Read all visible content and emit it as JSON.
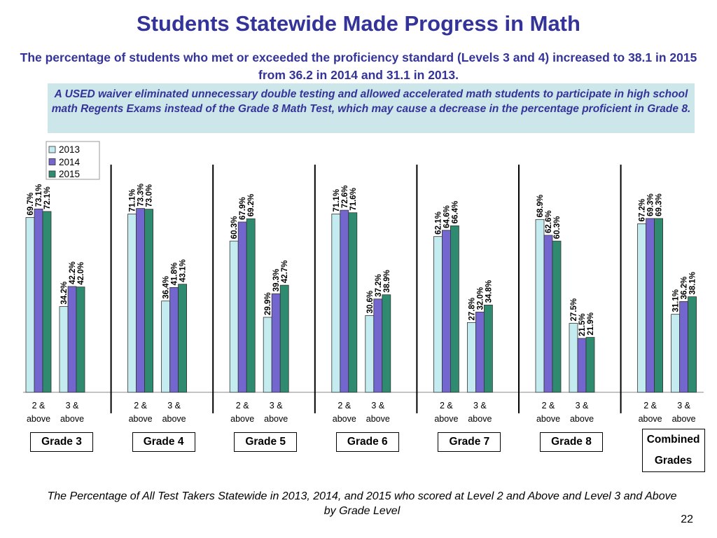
{
  "title": "Students Statewide Made Progress in Math",
  "subtitle": "The percentage of students who met or exceeded the proficiency standard (Levels 3 and 4) increased to 38.1 in 2015 from 36.2 in 2014 and 31.1 in 2013.",
  "note": "A USED waiver eliminated unnecessary double testing and allowed accelerated math students to participate in high school math Regents Exams instead of the Grade 8 Math Test, which may cause a decrease in the percentage proficient in Grade 8.",
  "caption": "The Percentage of All Test Takers Statewide in 2013, 2014, and 2015 who scored at Level 2 and Above and Level 3 and Above by Grade Level",
  "page_number": "22",
  "chart_data": {
    "type": "bar",
    "categories": [
      "2 & above",
      "3 & above",
      "2 & above",
      "3 & above",
      "2 & above",
      "3 & above",
      "2 & above",
      "3 & above",
      "2 & above",
      "3 & above",
      "2 & above",
      "3 & above",
      "2 & above",
      "3 & above"
    ],
    "groups": [
      "Grade 3",
      "Grade 4",
      "Grade 5",
      "Grade 6",
      "Grade 7",
      "Grade 8",
      "Combined Grades"
    ],
    "ylim": [
      0,
      100
    ],
    "legend": "top-left",
    "series": [
      {
        "name": "2013",
        "color": "#c4ecf0",
        "values": [
          69.7,
          34.2,
          71.1,
          36.4,
          60.3,
          29.9,
          71.1,
          30.6,
          62.1,
          27.8,
          68.9,
          27.5,
          67.2,
          31.1
        ],
        "value_labels": [
          "69.7%",
          "34.2%",
          "71.1%",
          "36.4%",
          "60.3%",
          "29.9%",
          "71.1%",
          "30.6%",
          "62.1%",
          "27.8%",
          "68.9%",
          "27.5%",
          "67.2%",
          "31.1%"
        ]
      },
      {
        "name": "2014",
        "color": "#7466cf",
        "values": [
          73.1,
          42.2,
          73.3,
          41.8,
          67.9,
          39.3,
          72.6,
          37.2,
          64.6,
          32.0,
          62.6,
          21.5,
          69.3,
          36.2
        ],
        "value_labels": [
          "73.1%",
          "42.2%",
          "73.3%",
          "41.8%",
          "67.9%",
          "39.3%",
          "72.6%",
          "37.2%",
          "64.6%",
          "32.0%",
          "62.6%",
          "21.5%",
          "69.3%",
          "36.2%"
        ]
      },
      {
        "name": "2015",
        "color": "#2e8b70",
        "values": [
          72.1,
          42.0,
          73.0,
          43.1,
          69.2,
          42.7,
          71.6,
          38.9,
          66.4,
          34.8,
          60.3,
          21.9,
          69.3,
          38.1
        ],
        "value_labels": [
          "72.1%",
          "42.0%",
          "73.0%",
          "43.1%",
          "69.2%",
          "42.7%",
          "71.6%",
          "38.9%",
          "66.4%",
          "34.8%",
          "60.3%",
          "21.9%",
          "69.3%",
          "38.1%"
        ]
      }
    ]
  }
}
